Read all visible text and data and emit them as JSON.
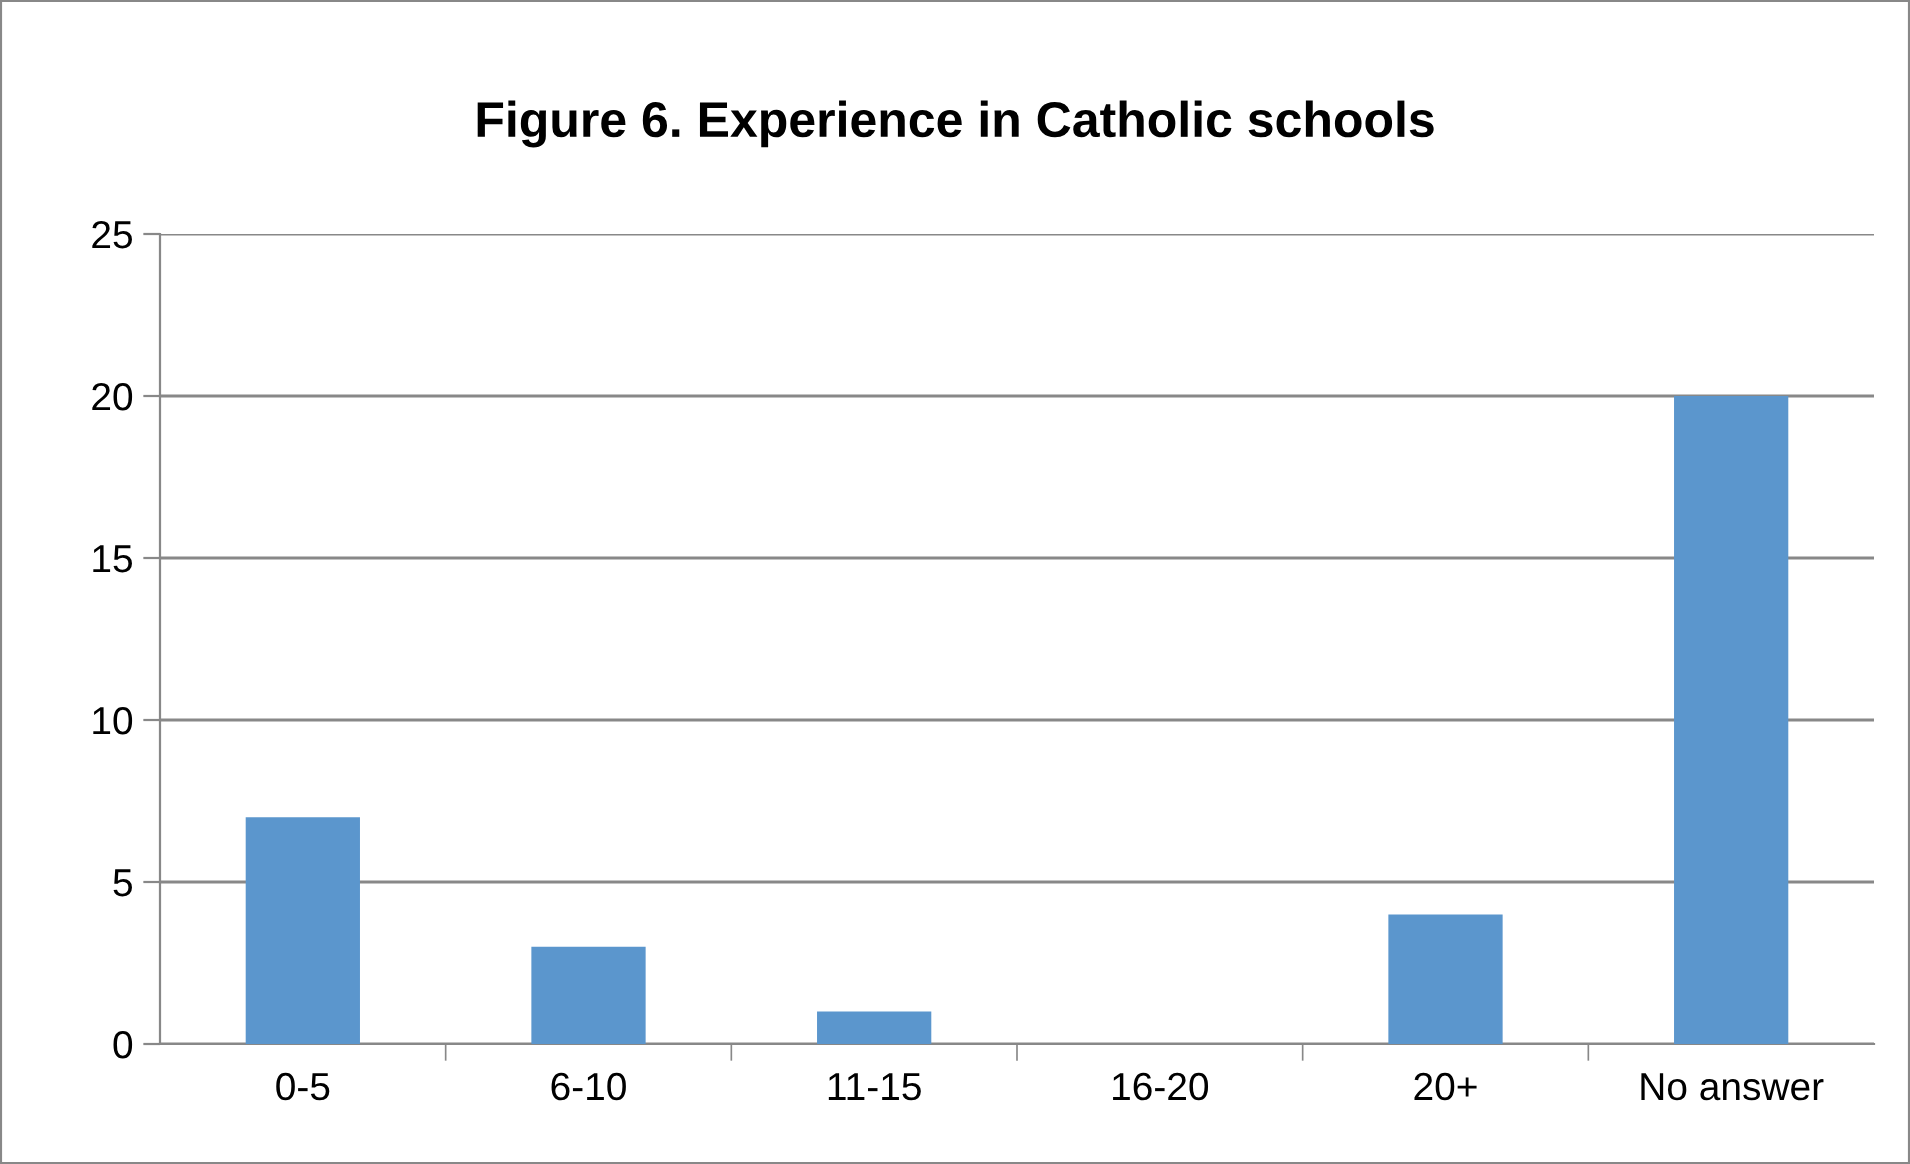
{
  "chart_data": {
    "type": "bar",
    "title": "Figure 6. Experience in Catholic schools",
    "categories": [
      "0-5",
      "6-10",
      "11-15",
      "16-20",
      "20+",
      "No answer"
    ],
    "values": [
      7,
      3,
      1,
      0,
      4,
      20
    ],
    "color": "#5b96cd",
    "ylim": [
      0,
      25
    ],
    "yticks": [
      0,
      5,
      10,
      15,
      20,
      25
    ],
    "grid": "y",
    "legend": false
  }
}
